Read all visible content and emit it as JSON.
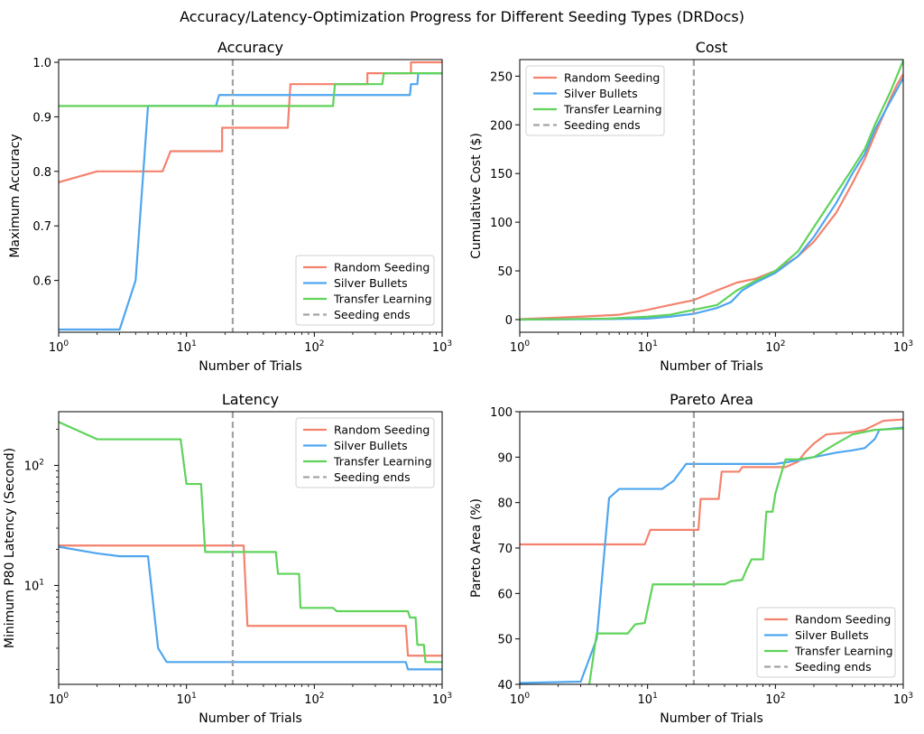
{
  "suptitle": "Accuracy/Latency-Optimization Progress for Different Seeding Types (DRDocs)",
  "colors": {
    "random": "#f4826e",
    "silver": "#4fa6ef",
    "transfer": "#5fd35a",
    "seeding": "#a3a3a3"
  },
  "legend": [
    "Random Seeding",
    "Silver Bullets",
    "Transfer Learning",
    "Seeding ends"
  ],
  "seeding_end": 23,
  "chart_data": [
    {
      "id": "accuracy",
      "type": "line",
      "title": "Accuracy",
      "xlabel": "Number of Trials",
      "ylabel": "Maximum Accuracy",
      "xscale": "log",
      "xlim": [
        1,
        1000
      ],
      "xticks": [
        1,
        10,
        100,
        1000
      ],
      "xticklabels": [
        "10^0",
        "10^1",
        "10^2",
        "10^3"
      ],
      "yscale": "linear",
      "ylim": [
        0.505,
        1.005
      ],
      "yticks": [
        0.6,
        0.7,
        0.8,
        0.9,
        1.0
      ],
      "yticklabels": [
        "0.6",
        "0.7",
        "0.8",
        "0.9",
        "1.0"
      ],
      "legend_loc": "lower-right",
      "series": [
        {
          "name": "Random Seeding",
          "color_key": "random",
          "points": [
            [
              1,
              0.78
            ],
            [
              2,
              0.8
            ],
            [
              6.5,
              0.8
            ],
            [
              7.5,
              0.837
            ],
            [
              19,
              0.837
            ],
            [
              19,
              0.88
            ],
            [
              62,
              0.88
            ],
            [
              65,
              0.96
            ],
            [
              260,
              0.96
            ],
            [
              260,
              0.98
            ],
            [
              570,
              0.98
            ],
            [
              570,
              1.0
            ],
            [
              1000,
              1.0
            ]
          ]
        },
        {
          "name": "Silver Bullets",
          "color_key": "silver",
          "points": [
            [
              1,
              0.51
            ],
            [
              3,
              0.51
            ],
            [
              4,
              0.6
            ],
            [
              5,
              0.92
            ],
            [
              17,
              0.92
            ],
            [
              18,
              0.94
            ],
            [
              560,
              0.94
            ],
            [
              570,
              0.96
            ],
            [
              640,
              0.96
            ],
            [
              650,
              0.98
            ],
            [
              1000,
              0.98
            ]
          ]
        },
        {
          "name": "Transfer Learning",
          "color_key": "transfer",
          "points": [
            [
              1,
              0.92
            ],
            [
              140,
              0.92
            ],
            [
              145,
              0.96
            ],
            [
              340,
              0.96
            ],
            [
              350,
              0.98
            ],
            [
              1000,
              0.98
            ]
          ]
        }
      ]
    },
    {
      "id": "cost",
      "type": "line",
      "title": "Cost",
      "xlabel": "Number of Trials",
      "ylabel": "Cumulative Cost ($)",
      "xscale": "log",
      "xlim": [
        1,
        1000
      ],
      "xticks": [
        1,
        10,
        100,
        1000
      ],
      "xticklabels": [
        "10^0",
        "10^1",
        "10^2",
        "10^3"
      ],
      "yscale": "linear",
      "ylim": [
        -13,
        267
      ],
      "yticks": [
        0,
        50,
        100,
        150,
        200,
        250
      ],
      "yticklabels": [
        "0",
        "50",
        "100",
        "150",
        "200",
        "250"
      ],
      "legend_loc": "top-left",
      "series": [
        {
          "name": "Random Seeding",
          "color_key": "random",
          "points": [
            [
              1,
              0.5
            ],
            [
              3,
              3
            ],
            [
              6,
              5
            ],
            [
              10,
              10
            ],
            [
              15,
              15
            ],
            [
              23,
              20
            ],
            [
              35,
              30
            ],
            [
              50,
              38
            ],
            [
              70,
              42
            ],
            [
              100,
              50
            ],
            [
              150,
              65
            ],
            [
              200,
              80
            ],
            [
              300,
              110
            ],
            [
              400,
              140
            ],
            [
              500,
              165
            ],
            [
              600,
              190
            ],
            [
              700,
              210
            ],
            [
              800,
              228
            ],
            [
              900,
              242
            ],
            [
              1000,
              252
            ]
          ]
        },
        {
          "name": "Silver Bullets",
          "color_key": "silver",
          "points": [
            [
              1,
              0
            ],
            [
              5,
              0.5
            ],
            [
              10,
              1
            ],
            [
              15,
              3
            ],
            [
              23,
              6
            ],
            [
              35,
              12
            ],
            [
              45,
              18
            ],
            [
              55,
              30
            ],
            [
              70,
              38
            ],
            [
              100,
              48
            ],
            [
              150,
              65
            ],
            [
              200,
              85
            ],
            [
              300,
              120
            ],
            [
              400,
              150
            ],
            [
              500,
              170
            ],
            [
              600,
              195
            ],
            [
              800,
              225
            ],
            [
              1000,
              248
            ]
          ]
        },
        {
          "name": "Transfer Learning",
          "color_key": "transfer",
          "points": [
            [
              1,
              0
            ],
            [
              5,
              1
            ],
            [
              10,
              3
            ],
            [
              15,
              5
            ],
            [
              23,
              10
            ],
            [
              35,
              15
            ],
            [
              50,
              30
            ],
            [
              70,
              40
            ],
            [
              100,
              50
            ],
            [
              150,
              70
            ],
            [
              200,
              95
            ],
            [
              300,
              130
            ],
            [
              400,
              155
            ],
            [
              500,
              175
            ],
            [
              600,
              200
            ],
            [
              800,
              235
            ],
            [
              1000,
              266
            ]
          ]
        }
      ]
    },
    {
      "id": "latency",
      "type": "line",
      "title": "Latency",
      "xlabel": "Number of Trials",
      "ylabel": "Minimum P80 Latency (Second)",
      "xscale": "log",
      "xlim": [
        1,
        1000
      ],
      "xticks": [
        1,
        10,
        100,
        1000
      ],
      "xticklabels": [
        "10^0",
        "10^1",
        "10^2",
        "10^3"
      ],
      "yscale": "log",
      "ylim": [
        1.5,
        280
      ],
      "yticks": [
        10,
        100
      ],
      "yticklabels": [
        "10^1",
        "10^2"
      ],
      "legend_loc": "top-right",
      "series": [
        {
          "name": "Random Seeding",
          "color_key": "random",
          "points": [
            [
              1,
              21.5
            ],
            [
              28,
              21.5
            ],
            [
              30,
              4.6
            ],
            [
              520,
              4.6
            ],
            [
              540,
              2.6
            ],
            [
              1000,
              2.6
            ]
          ]
        },
        {
          "name": "Silver Bullets",
          "color_key": "silver",
          "points": [
            [
              1,
              21
            ],
            [
              2,
              18.5
            ],
            [
              3,
              17.5
            ],
            [
              5,
              17.5
            ],
            [
              6,
              3
            ],
            [
              7,
              2.3
            ],
            [
              520,
              2.3
            ],
            [
              540,
              2.0
            ],
            [
              1000,
              2.0
            ]
          ]
        },
        {
          "name": "Transfer Learning",
          "color_key": "transfer",
          "points": [
            [
              1,
              230
            ],
            [
              2,
              165
            ],
            [
              9,
              165
            ],
            [
              10,
              70
            ],
            [
              13,
              70
            ],
            [
              14,
              19
            ],
            [
              50,
              19
            ],
            [
              52,
              12.5
            ],
            [
              76,
              12.5
            ],
            [
              78,
              6.5
            ],
            [
              140,
              6.5
            ],
            [
              150,
              6.1
            ],
            [
              540,
              6.1
            ],
            [
              560,
              5.4
            ],
            [
              620,
              5.4
            ],
            [
              640,
              3.2
            ],
            [
              720,
              3.2
            ],
            [
              740,
              2.3
            ],
            [
              1000,
              2.3
            ]
          ]
        }
      ]
    },
    {
      "id": "pareto",
      "type": "line",
      "title": "Pareto Area",
      "xlabel": "Number of Trials",
      "ylabel": "Pareto Area (%)",
      "xscale": "log",
      "xlim": [
        1,
        1000
      ],
      "xticks": [
        1,
        10,
        100,
        1000
      ],
      "xticklabels": [
        "10^0",
        "10^1",
        "10^2",
        "10^3"
      ],
      "yscale": "linear",
      "ylim": [
        40,
        100
      ],
      "yticks": [
        40,
        50,
        60,
        70,
        80,
        90,
        100
      ],
      "yticklabels": [
        "40",
        "50",
        "60",
        "70",
        "80",
        "90",
        "100"
      ],
      "legend_loc": "lower-right",
      "series": [
        {
          "name": "Random Seeding",
          "color_key": "random",
          "points": [
            [
              1,
              70.8
            ],
            [
              9.5,
              70.8
            ],
            [
              10.5,
              74
            ],
            [
              25,
              74
            ],
            [
              26,
              80.8
            ],
            [
              36,
              80.8
            ],
            [
              38,
              86.8
            ],
            [
              52,
              86.8
            ],
            [
              55,
              87.8
            ],
            [
              120,
              87.8
            ],
            [
              150,
              89
            ],
            [
              170,
              91
            ],
            [
              200,
              93
            ],
            [
              250,
              95
            ],
            [
              400,
              95.5
            ],
            [
              500,
              96
            ],
            [
              700,
              98
            ],
            [
              1000,
              98.3
            ]
          ]
        },
        {
          "name": "Silver Bullets",
          "color_key": "silver",
          "points": [
            [
              1,
              40.3
            ],
            [
              3,
              40.6
            ],
            [
              4,
              50
            ],
            [
              5,
              81
            ],
            [
              6,
              83
            ],
            [
              13,
              83
            ],
            [
              16,
              84.8
            ],
            [
              20,
              88.5
            ],
            [
              100,
              88.5
            ],
            [
              150,
              89.3
            ],
            [
              200,
              90
            ],
            [
              300,
              91
            ],
            [
              400,
              91.5
            ],
            [
              500,
              92
            ],
            [
              600,
              94
            ],
            [
              650,
              96
            ],
            [
              1000,
              96.5
            ]
          ]
        },
        {
          "name": "Transfer Learning",
          "color_key": "transfer",
          "points": [
            [
              3.5,
              40
            ],
            [
              4,
              51.2
            ],
            [
              7,
              51.2
            ],
            [
              8,
              53.2
            ],
            [
              9.5,
              53.5
            ],
            [
              11,
              62
            ],
            [
              40,
              62
            ],
            [
              45,
              62.7
            ],
            [
              55,
              63
            ],
            [
              60,
              65.5
            ],
            [
              65,
              67.5
            ],
            [
              80,
              67.5
            ],
            [
              85,
              78
            ],
            [
              95,
              78
            ],
            [
              100,
              82
            ],
            [
              110,
              86
            ],
            [
              120,
              89.5
            ],
            [
              150,
              89.5
            ],
            [
              200,
              90
            ],
            [
              300,
              93
            ],
            [
              400,
              95
            ],
            [
              600,
              96
            ],
            [
              1000,
              96.3
            ]
          ]
        }
      ]
    }
  ]
}
